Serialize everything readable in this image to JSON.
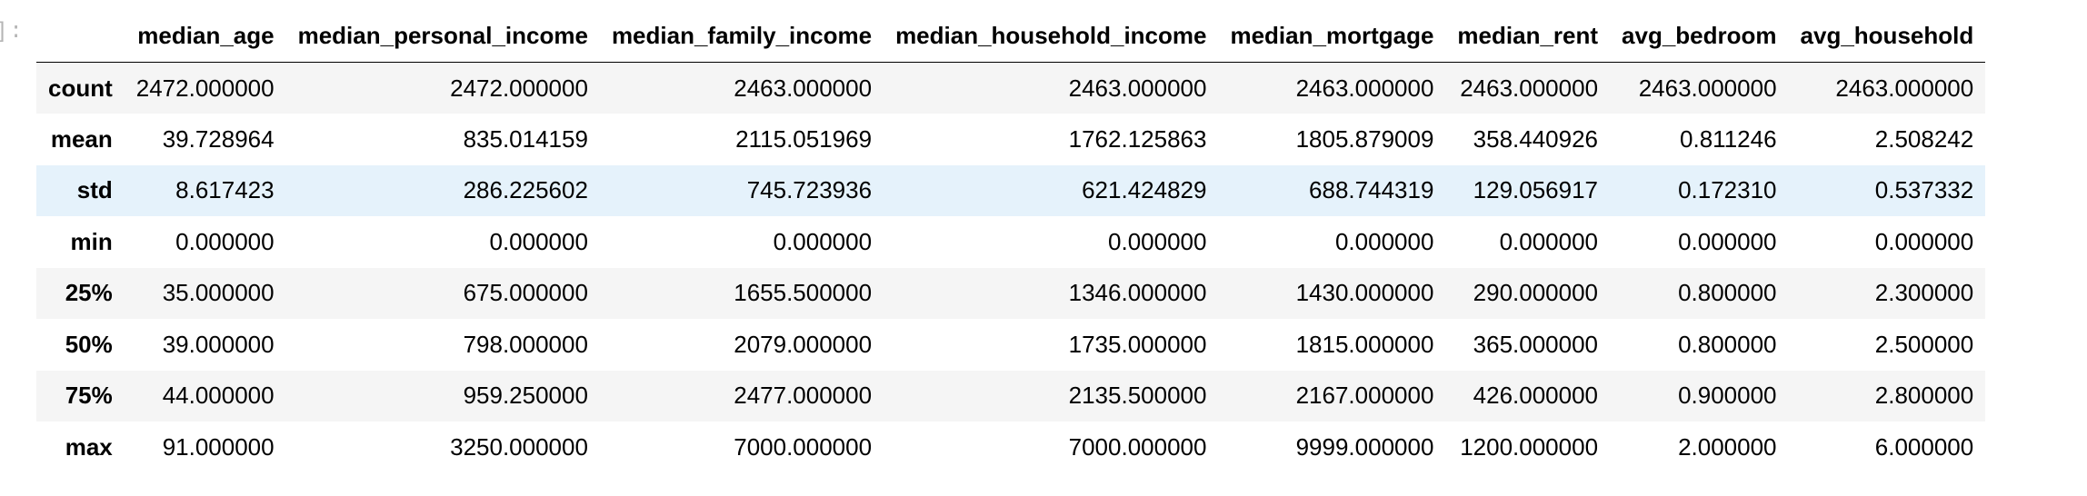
{
  "cell_prompt": "]:",
  "table": {
    "columns": [
      "median_age",
      "median_personal_income",
      "median_family_income",
      "median_household_income",
      "median_mortgage",
      "median_rent",
      "avg_bedroom",
      "avg_household"
    ],
    "rows": [
      {
        "label": "count",
        "values": [
          "2472.000000",
          "2472.000000",
          "2463.000000",
          "2463.000000",
          "2463.000000",
          "2463.000000",
          "2463.000000",
          "2463.000000"
        ]
      },
      {
        "label": "mean",
        "values": [
          "39.728964",
          "835.014159",
          "2115.051969",
          "1762.125863",
          "1805.879009",
          "358.440926",
          "0.811246",
          "2.508242"
        ]
      },
      {
        "label": "std",
        "values": [
          "8.617423",
          "286.225602",
          "745.723936",
          "621.424829",
          "688.744319",
          "129.056917",
          "0.172310",
          "0.537332"
        ]
      },
      {
        "label": "min",
        "values": [
          "0.000000",
          "0.000000",
          "0.000000",
          "0.000000",
          "0.000000",
          "0.000000",
          "0.000000",
          "0.000000"
        ]
      },
      {
        "label": "25%",
        "values": [
          "35.000000",
          "675.000000",
          "1655.500000",
          "1346.000000",
          "1430.000000",
          "290.000000",
          "0.800000",
          "2.300000"
        ]
      },
      {
        "label": "50%",
        "values": [
          "39.000000",
          "798.000000",
          "2079.000000",
          "1735.000000",
          "1815.000000",
          "365.000000",
          "0.800000",
          "2.500000"
        ]
      },
      {
        "label": "75%",
        "values": [
          "44.000000",
          "959.250000",
          "2477.000000",
          "2135.500000",
          "2167.000000",
          "426.000000",
          "0.900000",
          "2.800000"
        ]
      },
      {
        "label": "max",
        "values": [
          "91.000000",
          "3250.000000",
          "7000.000000",
          "7000.000000",
          "9999.000000",
          "1200.000000",
          "2.000000",
          "6.000000"
        ]
      }
    ],
    "hovered_row": "std"
  },
  "colors": {
    "striped_row": "#f5f5f5",
    "hover_row": "#e5f2fb",
    "prompt_text": "#b5b5b5"
  }
}
